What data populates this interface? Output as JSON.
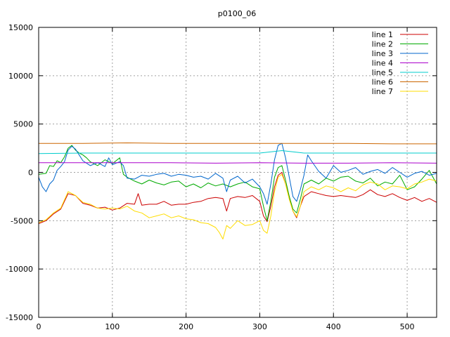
{
  "chart_data": {
    "type": "line",
    "title": "p0100_06",
    "xlabel": "",
    "ylabel": "",
    "xlim": [
      0,
      540
    ],
    "ylim": [
      -15000,
      15000
    ],
    "x_ticks": [
      0,
      100,
      200,
      300,
      400,
      500
    ],
    "y_ticks": [
      -15000,
      -10000,
      -5000,
      0,
      5000,
      10000,
      15000
    ],
    "grid": true,
    "legend_position": "top-right",
    "series": [
      {
        "name": "line 1",
        "color": "#cc0000",
        "points": [
          [
            0,
            -5300
          ],
          [
            10,
            -5000
          ],
          [
            20,
            -4300
          ],
          [
            30,
            -3800
          ],
          [
            40,
            -2200
          ],
          [
            50,
            -2400
          ],
          [
            60,
            -3200
          ],
          [
            70,
            -3400
          ],
          [
            80,
            -3700
          ],
          [
            90,
            -3600
          ],
          [
            100,
            -3900
          ],
          [
            110,
            -3700
          ],
          [
            120,
            -3200
          ],
          [
            130,
            -3300
          ],
          [
            135,
            -2200
          ],
          [
            140,
            -3400
          ],
          [
            150,
            -3300
          ],
          [
            160,
            -3300
          ],
          [
            170,
            -3000
          ],
          [
            180,
            -3400
          ],
          [
            190,
            -3300
          ],
          [
            200,
            -3300
          ],
          [
            210,
            -3100
          ],
          [
            220,
            -3000
          ],
          [
            230,
            -2700
          ],
          [
            240,
            -2600
          ],
          [
            250,
            -2700
          ],
          [
            255,
            -4000
          ],
          [
            260,
            -2700
          ],
          [
            270,
            -2500
          ],
          [
            280,
            -2600
          ],
          [
            290,
            -2400
          ],
          [
            300,
            -3000
          ],
          [
            305,
            -4500
          ],
          [
            310,
            -5100
          ],
          [
            315,
            -3500
          ],
          [
            320,
            -1500
          ],
          [
            325,
            -300
          ],
          [
            330,
            0
          ],
          [
            335,
            -1200
          ],
          [
            340,
            -2500
          ],
          [
            345,
            -4000
          ],
          [
            350,
            -4700
          ],
          [
            355,
            -3500
          ],
          [
            360,
            -2500
          ],
          [
            370,
            -2000
          ],
          [
            380,
            -2200
          ],
          [
            390,
            -2400
          ],
          [
            400,
            -2500
          ],
          [
            410,
            -2400
          ],
          [
            420,
            -2500
          ],
          [
            430,
            -2600
          ],
          [
            440,
            -2300
          ],
          [
            450,
            -1800
          ],
          [
            460,
            -2300
          ],
          [
            470,
            -2500
          ],
          [
            480,
            -2200
          ],
          [
            490,
            -2600
          ],
          [
            500,
            -2900
          ],
          [
            510,
            -2600
          ],
          [
            520,
            -3000
          ],
          [
            530,
            -2700
          ],
          [
            540,
            -3100
          ]
        ]
      },
      {
        "name": "line 2",
        "color": "#00aa00",
        "points": [
          [
            0,
            -200
          ],
          [
            10,
            -100
          ],
          [
            15,
            700
          ],
          [
            20,
            600
          ],
          [
            25,
            1200
          ],
          [
            30,
            1000
          ],
          [
            35,
            1600
          ],
          [
            40,
            2500
          ],
          [
            45,
            2800
          ],
          [
            50,
            2300
          ],
          [
            55,
            2000
          ],
          [
            60,
            1800
          ],
          [
            65,
            1500
          ],
          [
            70,
            1100
          ],
          [
            80,
            700
          ],
          [
            90,
            1300
          ],
          [
            100,
            900
          ],
          [
            110,
            1500
          ],
          [
            115,
            -200
          ],
          [
            120,
            -500
          ],
          [
            130,
            -900
          ],
          [
            140,
            -1200
          ],
          [
            150,
            -800
          ],
          [
            160,
            -1100
          ],
          [
            170,
            -1300
          ],
          [
            180,
            -1000
          ],
          [
            190,
            -900
          ],
          [
            200,
            -1500
          ],
          [
            210,
            -1200
          ],
          [
            220,
            -1600
          ],
          [
            230,
            -1100
          ],
          [
            240,
            -1400
          ],
          [
            250,
            -1200
          ],
          [
            260,
            -1500
          ],
          [
            270,
            -1200
          ],
          [
            280,
            -1000
          ],
          [
            290,
            -1500
          ],
          [
            300,
            -1700
          ],
          [
            305,
            -3500
          ],
          [
            310,
            -5000
          ],
          [
            315,
            -3000
          ],
          [
            320,
            -500
          ],
          [
            325,
            500
          ],
          [
            330,
            700
          ],
          [
            335,
            -800
          ],
          [
            340,
            -2500
          ],
          [
            345,
            -3800
          ],
          [
            350,
            -4200
          ],
          [
            355,
            -2800
          ],
          [
            360,
            -1200
          ],
          [
            370,
            -800
          ],
          [
            380,
            -1200
          ],
          [
            390,
            -600
          ],
          [
            400,
            -900
          ],
          [
            410,
            -500
          ],
          [
            420,
            -400
          ],
          [
            430,
            -900
          ],
          [
            440,
            -1100
          ],
          [
            450,
            -600
          ],
          [
            460,
            -1400
          ],
          [
            470,
            -1000
          ],
          [
            480,
            -1200
          ],
          [
            490,
            -300
          ],
          [
            500,
            -1800
          ],
          [
            510,
            -1500
          ],
          [
            520,
            -700
          ],
          [
            530,
            200
          ],
          [
            540,
            -1200
          ]
        ]
      },
      {
        "name": "line 3",
        "color": "#0066cc",
        "points": [
          [
            0,
            -500
          ],
          [
            5,
            -1500
          ],
          [
            10,
            -2000
          ],
          [
            15,
            -1200
          ],
          [
            20,
            -800
          ],
          [
            25,
            200
          ],
          [
            30,
            600
          ],
          [
            35,
            1100
          ],
          [
            40,
            2300
          ],
          [
            45,
            2700
          ],
          [
            50,
            2400
          ],
          [
            55,
            1800
          ],
          [
            60,
            1200
          ],
          [
            70,
            700
          ],
          [
            80,
            1000
          ],
          [
            90,
            600
          ],
          [
            95,
            1500
          ],
          [
            100,
            800
          ],
          [
            110,
            1100
          ],
          [
            115,
            700
          ],
          [
            120,
            -600
          ],
          [
            130,
            -700
          ],
          [
            140,
            -300
          ],
          [
            150,
            -400
          ],
          [
            160,
            -200
          ],
          [
            170,
            -100
          ],
          [
            180,
            -400
          ],
          [
            190,
            -200
          ],
          [
            200,
            -300
          ],
          [
            210,
            -500
          ],
          [
            220,
            -400
          ],
          [
            230,
            -700
          ],
          [
            240,
            -100
          ],
          [
            250,
            -600
          ],
          [
            255,
            -2000
          ],
          [
            260,
            -800
          ],
          [
            270,
            -400
          ],
          [
            280,
            -1100
          ],
          [
            290,
            -700
          ],
          [
            300,
            -1500
          ],
          [
            305,
            -2200
          ],
          [
            310,
            -3300
          ],
          [
            315,
            -1200
          ],
          [
            320,
            1300
          ],
          [
            325,
            2800
          ],
          [
            330,
            3000
          ],
          [
            335,
            1500
          ],
          [
            340,
            -500
          ],
          [
            345,
            -2500
          ],
          [
            350,
            -3000
          ],
          [
            355,
            -1800
          ],
          [
            360,
            -300
          ],
          [
            365,
            1800
          ],
          [
            370,
            1200
          ],
          [
            380,
            100
          ],
          [
            390,
            -600
          ],
          [
            400,
            700
          ],
          [
            410,
            0
          ],
          [
            420,
            200
          ],
          [
            430,
            500
          ],
          [
            440,
            -200
          ],
          [
            450,
            100
          ],
          [
            460,
            300
          ],
          [
            470,
            -100
          ],
          [
            480,
            500
          ],
          [
            490,
            0
          ],
          [
            500,
            -500
          ],
          [
            510,
            -100
          ],
          [
            520,
            100
          ],
          [
            530,
            -300
          ],
          [
            540,
            -100
          ]
        ]
      },
      {
        "name": "line 4",
        "color": "#aa00cc",
        "points": [
          [
            0,
            1000
          ],
          [
            60,
            1000
          ],
          [
            120,
            1000
          ],
          [
            180,
            1000
          ],
          [
            240,
            950
          ],
          [
            300,
            1000
          ],
          [
            360,
            950
          ],
          [
            420,
            950
          ],
          [
            480,
            1000
          ],
          [
            540,
            950
          ]
        ]
      },
      {
        "name": "line 5",
        "color": "#00cccc",
        "points": [
          [
            0,
            1950
          ],
          [
            60,
            2000
          ],
          [
            120,
            2000
          ],
          [
            180,
            2000
          ],
          [
            240,
            2000
          ],
          [
            300,
            2000
          ],
          [
            330,
            2250
          ],
          [
            360,
            2000
          ],
          [
            420,
            2000
          ],
          [
            480,
            2000
          ],
          [
            540,
            2000
          ]
        ]
      },
      {
        "name": "line 6",
        "color": "#cc6600",
        "points": [
          [
            0,
            3000
          ],
          [
            60,
            3000
          ],
          [
            120,
            3050
          ],
          [
            180,
            3000
          ],
          [
            240,
            3000
          ],
          [
            300,
            3000
          ],
          [
            360,
            3000
          ],
          [
            420,
            3000
          ],
          [
            480,
            2950
          ],
          [
            540,
            2950
          ]
        ]
      },
      {
        "name": "line 7",
        "color": "#ffdd00",
        "points": [
          [
            0,
            -5200
          ],
          [
            10,
            -4900
          ],
          [
            20,
            -4200
          ],
          [
            30,
            -3700
          ],
          [
            40,
            -2000
          ],
          [
            50,
            -2400
          ],
          [
            60,
            -3100
          ],
          [
            70,
            -3300
          ],
          [
            80,
            -3700
          ],
          [
            90,
            -3800
          ],
          [
            100,
            -3700
          ],
          [
            110,
            -3800
          ],
          [
            120,
            -3500
          ],
          [
            130,
            -4000
          ],
          [
            140,
            -4200
          ],
          [
            150,
            -4700
          ],
          [
            160,
            -4500
          ],
          [
            170,
            -4300
          ],
          [
            180,
            -4700
          ],
          [
            190,
            -4500
          ],
          [
            200,
            -4800
          ],
          [
            210,
            -4900
          ],
          [
            220,
            -5200
          ],
          [
            230,
            -5300
          ],
          [
            240,
            -5700
          ],
          [
            245,
            -6200
          ],
          [
            250,
            -6900
          ],
          [
            255,
            -5500
          ],
          [
            260,
            -5800
          ],
          [
            270,
            -5000
          ],
          [
            280,
            -5500
          ],
          [
            290,
            -5400
          ],
          [
            300,
            -5000
          ],
          [
            305,
            -6000
          ],
          [
            310,
            -6300
          ],
          [
            315,
            -4500
          ],
          [
            320,
            -2000
          ],
          [
            325,
            -500
          ],
          [
            330,
            -200
          ],
          [
            335,
            -1200
          ],
          [
            340,
            -2800
          ],
          [
            345,
            -4000
          ],
          [
            350,
            -4600
          ],
          [
            355,
            -3500
          ],
          [
            360,
            -2000
          ],
          [
            370,
            -1500
          ],
          [
            380,
            -1800
          ],
          [
            390,
            -1400
          ],
          [
            400,
            -1600
          ],
          [
            410,
            -2000
          ],
          [
            420,
            -1600
          ],
          [
            430,
            -1900
          ],
          [
            440,
            -1300
          ],
          [
            450,
            -1000
          ],
          [
            460,
            -1200
          ],
          [
            470,
            -1800
          ],
          [
            480,
            -1400
          ],
          [
            490,
            -1500
          ],
          [
            500,
            -1700
          ],
          [
            510,
            -1200
          ],
          [
            520,
            -1000
          ],
          [
            530,
            -700
          ],
          [
            540,
            -900
          ]
        ]
      }
    ]
  }
}
